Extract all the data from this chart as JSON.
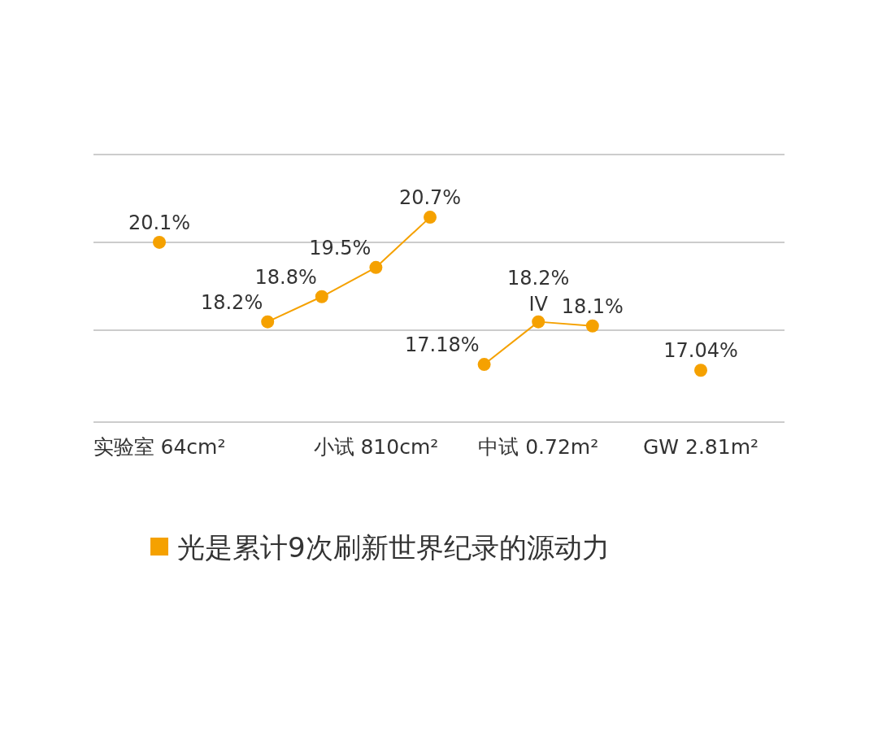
{
  "chart_data": {
    "type": "line",
    "marker": "circle",
    "line_style": "solid",
    "grid": "y",
    "legend": "bottom",
    "data_labels": true,
    "tick_labels": "x",
    "ylim": [
      15.8,
      22.2
    ],
    "yticks": [
      {
        "value": 15.8,
        "label": null
      },
      {
        "value": 18.0,
        "label": null
      },
      {
        "value": 20.1,
        "label": null
      },
      {
        "value": 22.2,
        "label": null
      }
    ],
    "categories": [
      "实验室 64cm²",
      null,
      null,
      null,
      "小试 810cm²",
      null,
      null,
      "中试 0.72m²",
      null,
      null,
      "GW 2.81m²"
    ],
    "series": [
      {
        "name": "光是累计9次刷新世界纪录的源动力",
        "color": "#f5a100",
        "values": [
          20.1,
          null,
          null,
          null,
          null,
          null,
          null,
          null,
          null,
          null,
          null
        ],
        "value_labels": [
          "20.1%",
          null,
          null,
          null,
          null,
          null,
          null,
          null,
          null,
          null,
          null
        ]
      },
      {
        "color": "#f5a100",
        "values": [
          null,
          null,
          18.2,
          18.8,
          19.5,
          20.7,
          null,
          null,
          null,
          null,
          null
        ],
        "value_labels": [
          null,
          null,
          "18.2%",
          "18.8%",
          "19.5%",
          "20.7%",
          null,
          null,
          null,
          null,
          null
        ]
      },
      {
        "color": "#f5a100",
        "values": [
          null,
          null,
          null,
          null,
          null,
          null,
          17.18,
          18.2,
          18.1,
          null,
          null
        ],
        "value_labels": [
          null,
          null,
          null,
          null,
          null,
          null,
          "17.18%",
          "18.2%",
          "18.1%",
          null,
          null
        ]
      },
      {
        "color": "#f5a100",
        "values": [
          null,
          null,
          null,
          null,
          null,
          null,
          null,
          null,
          null,
          null,
          17.04
        ],
        "value_labels": [
          null,
          null,
          null,
          null,
          null,
          null,
          null,
          null,
          null,
          null,
          "17.04%"
        ]
      }
    ],
    "annotations": [
      {
        "text": "IV",
        "x": "中试 0.72m²",
        "y": 18.2
      }
    ]
  }
}
